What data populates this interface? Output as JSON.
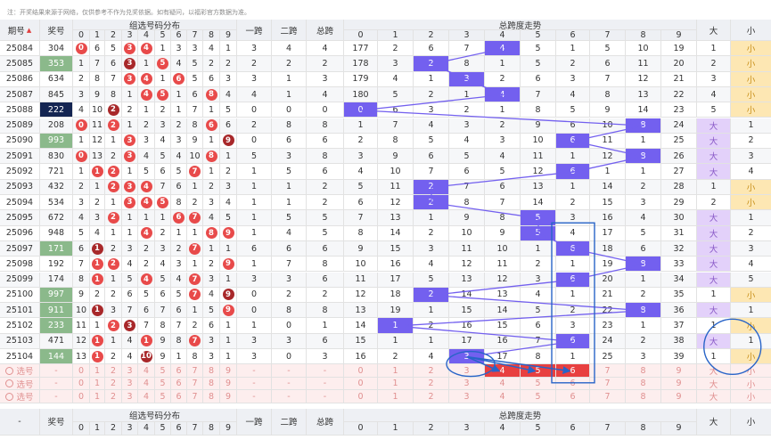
{
  "notice": "注：开奖结果来源于网络，仅供参考不作为兑奖依据。如有疑问，以福彩官方数据为准。",
  "header": {
    "period": "期号",
    "sort_icon": "sort-icon",
    "prize": "奖号",
    "group_dist": "组选号码分布",
    "span1": "一跨",
    "span2": "二跨",
    "total_span": "总跨",
    "trend": "总跨度走势",
    "big": "大",
    "small": "小",
    "digits": [
      "0",
      "1",
      "2",
      "3",
      "4",
      "5",
      "6",
      "7",
      "8",
      "9"
    ]
  },
  "rows": [
    {
      "period": "25084",
      "prize": "304",
      "prize_style": "",
      "dist": [
        "0",
        "6",
        "5",
        "3",
        "4",
        "1",
        "3",
        "3",
        "4",
        "1"
      ],
      "span1": "3",
      "span2": "4",
      "total": "4",
      "trend": [
        "177",
        "2",
        "6",
        "7",
        "4",
        "5",
        "1",
        "5",
        "10",
        "19"
      ],
      "big": "1",
      "small": "小"
    },
    {
      "period": "25085",
      "prize": "353",
      "prize_style": "g",
      "dist": [
        "1",
        "7",
        "6",
        "3",
        "1",
        "5",
        "4",
        "5",
        "2",
        "2"
      ],
      "span1": "2",
      "span2": "2",
      "total": "2",
      "trend": [
        "178",
        "3",
        "2",
        "8",
        "1",
        "5",
        "2",
        "6",
        "11",
        "20"
      ],
      "big": "2",
      "small": "小"
    },
    {
      "period": "25086",
      "prize": "634",
      "prize_style": "",
      "dist": [
        "2",
        "8",
        "7",
        "3",
        "4",
        "1",
        "6",
        "5",
        "6",
        "3"
      ],
      "span1": "3",
      "span2": "1",
      "total": "3",
      "trend": [
        "179",
        "4",
        "1",
        "3",
        "2",
        "6",
        "3",
        "7",
        "12",
        "21"
      ],
      "big": "3",
      "small": "小"
    },
    {
      "period": "25087",
      "prize": "845",
      "prize_style": "",
      "dist": [
        "3",
        "9",
        "8",
        "1",
        "4",
        "5",
        "1",
        "6",
        "8",
        "4"
      ],
      "span1": "4",
      "span2": "1",
      "total": "4",
      "trend": [
        "180",
        "5",
        "2",
        "1",
        "4",
        "7",
        "4",
        "8",
        "13",
        "22"
      ],
      "big": "4",
      "small": "小"
    },
    {
      "period": "25088",
      "prize": "222",
      "prize_style": "k",
      "dist": [
        "4",
        "10",
        "2",
        "2",
        "1",
        "2",
        "1",
        "7",
        "1",
        "5"
      ],
      "span1": "0",
      "span2": "0",
      "total": "0",
      "trend": [
        "0",
        "6",
        "3",
        "2",
        "1",
        "8",
        "5",
        "9",
        "14",
        "23"
      ],
      "big": "5",
      "small": "小"
    },
    {
      "period": "25089",
      "prize": "208",
      "prize_style": "",
      "dist": [
        "0",
        "11",
        "2",
        "1",
        "2",
        "3",
        "2",
        "8",
        "6",
        "6"
      ],
      "span1": "2",
      "span2": "8",
      "total": "8",
      "trend": [
        "1",
        "7",
        "4",
        "3",
        "2",
        "9",
        "6",
        "10",
        "8",
        "24"
      ],
      "big": "大",
      "small": "1"
    },
    {
      "period": "25090",
      "prize": "993",
      "prize_style": "g",
      "dist": [
        "1",
        "12",
        "1",
        "3",
        "3",
        "4",
        "3",
        "9",
        "1",
        "9"
      ],
      "span1": "0",
      "span2": "6",
      "total": "6",
      "trend": [
        "2",
        "8",
        "5",
        "4",
        "3",
        "10",
        "6",
        "11",
        "1",
        "25"
      ],
      "big": "大",
      "small": "2"
    },
    {
      "period": "25091",
      "prize": "830",
      "prize_style": "",
      "dist": [
        "0",
        "13",
        "2",
        "3",
        "4",
        "5",
        "4",
        "10",
        "8",
        "1"
      ],
      "span1": "5",
      "span2": "3",
      "total": "8",
      "trend": [
        "3",
        "9",
        "6",
        "5",
        "4",
        "11",
        "1",
        "12",
        "8",
        "26"
      ],
      "big": "大",
      "small": "3"
    },
    {
      "period": "25092",
      "prize": "721",
      "prize_style": "",
      "dist": [
        "1",
        "1",
        "2",
        "1",
        "5",
        "6",
        "5",
        "7",
        "1",
        "2"
      ],
      "span1": "1",
      "span2": "5",
      "total": "6",
      "trend": [
        "4",
        "10",
        "7",
        "6",
        "5",
        "12",
        "6",
        "1",
        "1",
        "27"
      ],
      "big": "大",
      "small": "4"
    },
    {
      "period": "25093",
      "prize": "432",
      "prize_style": "",
      "dist": [
        "2",
        "1",
        "2",
        "3",
        "4",
        "7",
        "6",
        "1",
        "2",
        "3"
      ],
      "span1": "1",
      "span2": "1",
      "total": "2",
      "trend": [
        "5",
        "11",
        "2",
        "7",
        "6",
        "13",
        "1",
        "14",
        "2",
        "28"
      ],
      "big": "1",
      "small": "小"
    },
    {
      "period": "25094",
      "prize": "534",
      "prize_style": "",
      "dist": [
        "3",
        "2",
        "1",
        "3",
        "4",
        "5",
        "8",
        "2",
        "3",
        "4"
      ],
      "span1": "1",
      "span2": "1",
      "total": "2",
      "trend": [
        "6",
        "12",
        "2",
        "8",
        "7",
        "14",
        "2",
        "15",
        "3",
        "29"
      ],
      "big": "2",
      "small": "小"
    },
    {
      "period": "25095",
      "prize": "672",
      "prize_style": "",
      "dist": [
        "4",
        "3",
        "2",
        "1",
        "1",
        "1",
        "6",
        "7",
        "4",
        "5"
      ],
      "span1": "1",
      "span2": "5",
      "total": "5",
      "trend": [
        "7",
        "13",
        "1",
        "9",
        "8",
        "5",
        "3",
        "16",
        "4",
        "30"
      ],
      "big": "大",
      "small": "1"
    },
    {
      "period": "25096",
      "prize": "948",
      "prize_style": "",
      "dist": [
        "5",
        "4",
        "1",
        "1",
        "4",
        "2",
        "1",
        "1",
        "8",
        "9"
      ],
      "span1": "1",
      "span2": "4",
      "total": "5",
      "trend": [
        "8",
        "14",
        "2",
        "10",
        "9",
        "5",
        "4",
        "17",
        "5",
        "31"
      ],
      "big": "大",
      "small": "2"
    },
    {
      "period": "25097",
      "prize": "171",
      "prize_style": "g",
      "dist": [
        "6",
        "1",
        "2",
        "3",
        "2",
        "3",
        "2",
        "7",
        "1",
        "1"
      ],
      "span1": "6",
      "span2": "6",
      "total": "6",
      "trend": [
        "9",
        "15",
        "3",
        "11",
        "10",
        "1",
        "6",
        "18",
        "6",
        "32"
      ],
      "big": "大",
      "small": "3"
    },
    {
      "period": "25098",
      "prize": "192",
      "prize_style": "",
      "dist": [
        "7",
        "1",
        "2",
        "4",
        "2",
        "4",
        "3",
        "1",
        "2",
        "9"
      ],
      "span1": "1",
      "span2": "7",
      "total": "8",
      "trend": [
        "10",
        "16",
        "4",
        "12",
        "11",
        "2",
        "1",
        "19",
        "8",
        "33"
      ],
      "big": "大",
      "small": "4"
    },
    {
      "period": "25099",
      "prize": "174",
      "prize_style": "",
      "dist": [
        "8",
        "1",
        "1",
        "5",
        "4",
        "5",
        "4",
        "7",
        "3",
        "1"
      ],
      "span1": "3",
      "span2": "3",
      "total": "6",
      "trend": [
        "11",
        "17",
        "5",
        "13",
        "12",
        "3",
        "6",
        "20",
        "1",
        "34"
      ],
      "big": "大",
      "small": "5"
    },
    {
      "period": "25100",
      "prize": "997",
      "prize_style": "g",
      "dist": [
        "9",
        "2",
        "2",
        "6",
        "5",
        "6",
        "5",
        "7",
        "4",
        "9"
      ],
      "span1": "0",
      "span2": "2",
      "total": "2",
      "trend": [
        "12",
        "18",
        "2",
        "14",
        "13",
        "4",
        "1",
        "21",
        "2",
        "35"
      ],
      "big": "1",
      "small": "小"
    },
    {
      "period": "25101",
      "prize": "911",
      "prize_style": "g",
      "dist": [
        "10",
        "1",
        "3",
        "7",
        "6",
        "7",
        "6",
        "1",
        "5",
        "9"
      ],
      "span1": "0",
      "span2": "8",
      "total": "8",
      "trend": [
        "13",
        "19",
        "1",
        "15",
        "14",
        "5",
        "2",
        "22",
        "8",
        "36"
      ],
      "big": "大",
      "small": "1"
    },
    {
      "period": "25102",
      "prize": "233",
      "prize_style": "g",
      "dist": [
        "11",
        "1",
        "2",
        "3",
        "7",
        "8",
        "7",
        "2",
        "6",
        "1"
      ],
      "span1": "1",
      "span2": "0",
      "total": "1",
      "trend": [
        "14",
        "1",
        "2",
        "16",
        "15",
        "6",
        "3",
        "23",
        "1",
        "37"
      ],
      "big": "1",
      "small": "小"
    },
    {
      "period": "25103",
      "prize": "471",
      "prize_style": "",
      "dist": [
        "12",
        "1",
        "1",
        "4",
        "1",
        "9",
        "8",
        "7",
        "3",
        "1"
      ],
      "span1": "3",
      "span2": "3",
      "total": "6",
      "trend": [
        "15",
        "1",
        "1",
        "17",
        "16",
        "7",
        "6",
        "24",
        "2",
        "38"
      ],
      "big": "大",
      "small": "1"
    },
    {
      "period": "25104",
      "prize": "144",
      "prize_style": "g",
      "dist": [
        "13",
        "1",
        "2",
        "4",
        "10",
        "9",
        "1",
        "8",
        "3",
        "1"
      ],
      "span1": "3",
      "span2": "0",
      "total": "3",
      "trend": [
        "16",
        "2",
        "4",
        "3",
        "17",
        "8",
        "1",
        "25",
        "3",
        "39"
      ],
      "big": "1",
      "small": "小"
    }
  ],
  "select_rows": [
    {
      "label": "选号",
      "dash": "-"
    },
    {
      "label": "选号",
      "dash": "-"
    },
    {
      "label": "选号",
      "dash": "-"
    }
  ],
  "select_trend_digits": [
    "0",
    "1",
    "2",
    "3",
    "4",
    "5",
    "6",
    "7",
    "8",
    "9"
  ],
  "footer": {
    "dash": "-",
    "prize": "奖号",
    "group_dist": "组选号码分布",
    "span1": "一跨",
    "span2": "二跨",
    "total_span": "总跨",
    "trend": "总跨度走势",
    "big": "大",
    "small": "小"
  },
  "colors": {
    "red_ball": "#e84a4a",
    "dark_ball": "#a8282a",
    "trend_blue": "#7360ef",
    "green_prize": "#8bb98b",
    "navy_prize": "#142552",
    "small_bg": "#fde7b3",
    "big_bg": "#e3d1fa",
    "pred_red": "#e84040",
    "annotation_blue": "#2864c8"
  }
}
